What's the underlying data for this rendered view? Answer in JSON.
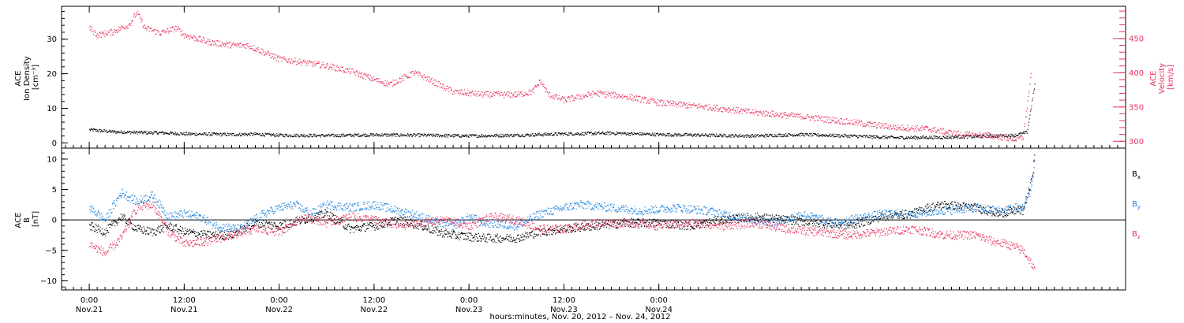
{
  "colors": {
    "pink": "#e8345f",
    "blue": "#1f83e0",
    "black": "#000000"
  },
  "chart_data": [
    {
      "type": "scatter",
      "panel": "plasma",
      "left_axis": {
        "label_lines": [
          "ACE",
          "Ion Density",
          "[cm⁻³]"
        ],
        "ylim": [
          -1.5,
          39.5
        ],
        "ticks": [
          0,
          10,
          20,
          30
        ],
        "tick_labels": [
          "0",
          "10",
          "20",
          "30"
        ]
      },
      "right_axis": {
        "label_lines": [
          "ACE",
          "Velocity",
          "[km/s]"
        ],
        "ylim": [
          290,
          497
        ],
        "ticks": [
          300,
          350,
          400,
          450
        ],
        "tick_labels": [
          "300",
          "350",
          "400",
          "450"
        ],
        "color": "#e8345f"
      },
      "series": [
        {
          "axis": "left",
          "color": "#000000",
          "points": [
            [
              0,
              3.8
            ],
            [
              3,
              3.2
            ],
            [
              6,
              3.0
            ],
            [
              9,
              2.9
            ],
            [
              12,
              2.6
            ],
            [
              18,
              2.4
            ],
            [
              21,
              2.5
            ],
            [
              24,
              2.2
            ],
            [
              30,
              2.1
            ],
            [
              36,
              2.3
            ],
            [
              42,
              2.2
            ],
            [
              48,
              2.0
            ],
            [
              54,
              2.2
            ],
            [
              60,
              2.6
            ],
            [
              66,
              2.8
            ],
            [
              72,
              2.4
            ],
            [
              78,
              2.2
            ],
            [
              84,
              2.0
            ],
            [
              90,
              2.4
            ],
            [
              96,
              2.0
            ],
            [
              102,
              1.5
            ],
            [
              108,
              1.6
            ],
            [
              114,
              2.0
            ],
            [
              117,
              2.2
            ],
            [
              118.5,
              3.0
            ],
            [
              119,
              10.0
            ],
            [
              119.5,
              17.0
            ]
          ]
        },
        {
          "axis": "right",
          "color": "#e8345f",
          "points": [
            [
              0,
              465
            ],
            [
              1,
              455
            ],
            [
              3,
              460
            ],
            [
              5,
              470
            ],
            [
              6,
              488
            ],
            [
              7,
              465
            ],
            [
              9,
              458
            ],
            [
              11,
              465
            ],
            [
              12,
              455
            ],
            [
              15,
              445
            ],
            [
              18,
              440
            ],
            [
              20,
              440
            ],
            [
              24,
              420
            ],
            [
              30,
              410
            ],
            [
              33,
              402
            ],
            [
              36,
              390
            ],
            [
              38,
              383
            ],
            [
              41,
              400
            ],
            [
              42,
              395
            ],
            [
              46,
              372
            ],
            [
              50,
              368
            ],
            [
              54,
              368
            ],
            [
              56,
              372
            ],
            [
              57,
              388
            ],
            [
              58,
              368
            ],
            [
              60,
              360
            ],
            [
              64,
              370
            ],
            [
              68,
              365
            ],
            [
              72,
              356
            ],
            [
              78,
              350
            ],
            [
              84,
              342
            ],
            [
              90,
              336
            ],
            [
              96,
              328
            ],
            [
              102,
              320
            ],
            [
              106,
              318
            ],
            [
              110,
              310
            ],
            [
              114,
              308
            ],
            [
              117,
              303
            ],
            [
              118,
              305
            ],
            [
              119,
              395
            ]
          ]
        }
      ]
    },
    {
      "type": "scatter",
      "panel": "magnetic-field",
      "left_axis": {
        "label_lines": [
          "ACE",
          "B",
          "[nT]"
        ],
        "ylim": [
          -11.5,
          11.8
        ],
        "ticks": [
          -10,
          -5,
          0,
          5,
          10
        ],
        "tick_labels": [
          "−10",
          "−5",
          "0",
          "5",
          "10"
        ]
      },
      "legend": [
        {
          "label": "B",
          "subscript": "x",
          "color": "#000000"
        },
        {
          "label": "B",
          "subscript": "y",
          "color": "#1f83e0"
        },
        {
          "label": "B",
          "subscript": "z",
          "color": "#e8345f"
        }
      ],
      "series": [
        {
          "name": "Bx",
          "color": "#000000",
          "points": [
            [
              0,
              -1.0
            ],
            [
              2,
              -2.0
            ],
            [
              4,
              0.5
            ],
            [
              6,
              -1.5
            ],
            [
              8,
              -2.0
            ],
            [
              10,
              -1.0
            ],
            [
              12,
              -2.0
            ],
            [
              15,
              -2.5
            ],
            [
              18,
              -2.5
            ],
            [
              21,
              -0.5
            ],
            [
              24,
              -1.0
            ],
            [
              27,
              0.0
            ],
            [
              30,
              1.0
            ],
            [
              33,
              -1.5
            ],
            [
              36,
              -1.0
            ],
            [
              39,
              0.0
            ],
            [
              42,
              -1.0
            ],
            [
              44,
              -2.0
            ],
            [
              46,
              -2.5
            ],
            [
              50,
              -3.0
            ],
            [
              54,
              -3.0
            ],
            [
              57,
              -2.0
            ],
            [
              60,
              -1.5
            ],
            [
              64,
              -1.0
            ],
            [
              68,
              -0.5
            ],
            [
              72,
              -0.5
            ],
            [
              76,
              -1.0
            ],
            [
              80,
              0.0
            ],
            [
              84,
              0.5
            ],
            [
              88,
              0.0
            ],
            [
              92,
              -0.5
            ],
            [
              96,
              -1.0
            ],
            [
              100,
              0.5
            ],
            [
              104,
              1.0
            ],
            [
              106,
              2.0
            ],
            [
              108,
              2.5
            ],
            [
              112,
              2.0
            ],
            [
              115,
              1.0
            ],
            [
              117,
              1.5
            ],
            [
              118,
              1.5
            ],
            [
              119,
              6.0
            ],
            [
              119.5,
              10.5
            ]
          ]
        },
        {
          "name": "By",
          "color": "#1f83e0",
          "points": [
            [
              0,
              2.0
            ],
            [
              2,
              0.0
            ],
            [
              4,
              4.5
            ],
            [
              6,
              3.0
            ],
            [
              8,
              4.0
            ],
            [
              10,
              0.5
            ],
            [
              12,
              1.0
            ],
            [
              14,
              0.5
            ],
            [
              16,
              -1.0
            ],
            [
              19,
              -1.5
            ],
            [
              22,
              1.0
            ],
            [
              24,
              2.0
            ],
            [
              26,
              2.5
            ],
            [
              28,
              1.0
            ],
            [
              30,
              2.5
            ],
            [
              33,
              2.0
            ],
            [
              36,
              2.5
            ],
            [
              39,
              1.5
            ],
            [
              42,
              0.5
            ],
            [
              44,
              -0.5
            ],
            [
              46,
              -1.0
            ],
            [
              48,
              0.5
            ],
            [
              50,
              -0.5
            ],
            [
              54,
              -1.0
            ],
            [
              57,
              1.0
            ],
            [
              60,
              2.0
            ],
            [
              62,
              2.5
            ],
            [
              66,
              2.0
            ],
            [
              70,
              1.5
            ],
            [
              74,
              2.0
            ],
            [
              78,
              1.5
            ],
            [
              82,
              0.5
            ],
            [
              84,
              0.0
            ],
            [
              87,
              -0.5
            ],
            [
              90,
              1.0
            ],
            [
              94,
              -0.5
            ],
            [
              98,
              0.5
            ],
            [
              101,
              1.0
            ],
            [
              104,
              1.0
            ],
            [
              108,
              1.5
            ],
            [
              112,
              2.0
            ],
            [
              115,
              1.5
            ],
            [
              117,
              2.0
            ],
            [
              118,
              2.0
            ],
            [
              119,
              5.0
            ],
            [
              119.5,
              9.5
            ]
          ]
        },
        {
          "name": "Bz",
          "color": "#e8345f",
          "points": [
            [
              0,
              -4.0
            ],
            [
              2,
              -5.5
            ],
            [
              4,
              -3.0
            ],
            [
              6,
              2.0
            ],
            [
              8,
              2.5
            ],
            [
              10,
              -2.0
            ],
            [
              12,
              -4.0
            ],
            [
              15,
              -3.5
            ],
            [
              18,
              -2.5
            ],
            [
              21,
              -1.5
            ],
            [
              24,
              -2.0
            ],
            [
              27,
              0.5
            ],
            [
              30,
              -0.5
            ],
            [
              33,
              0.5
            ],
            [
              36,
              0.0
            ],
            [
              39,
              -1.0
            ],
            [
              42,
              -0.5
            ],
            [
              45,
              0.0
            ],
            [
              48,
              -1.0
            ],
            [
              51,
              0.5
            ],
            [
              54,
              0.0
            ],
            [
              57,
              -1.5
            ],
            [
              60,
              -1.5
            ],
            [
              64,
              -0.5
            ],
            [
              68,
              -0.5
            ],
            [
              72,
              -1.0
            ],
            [
              76,
              -0.5
            ],
            [
              80,
              -1.0
            ],
            [
              84,
              -0.5
            ],
            [
              88,
              -1.5
            ],
            [
              92,
              -2.0
            ],
            [
              96,
              -2.5
            ],
            [
              100,
              -2.0
            ],
            [
              104,
              -1.5
            ],
            [
              108,
              -2.5
            ],
            [
              112,
              -2.5
            ],
            [
              114,
              -3.5
            ],
            [
              116,
              -4.0
            ],
            [
              117,
              -4.5
            ],
            [
              118,
              -5.0
            ],
            [
              119,
              -7.0
            ],
            [
              119.5,
              -8.5
            ]
          ]
        }
      ]
    }
  ],
  "x_axis": {
    "xlim": [
      -3.5,
      131
    ],
    "ticks": [
      {
        "t": 0,
        "time": "0:00",
        "day": "Nov.21"
      },
      {
        "t": 12,
        "time": "12:00",
        "day": "Nov.21"
      },
      {
        "t": 24,
        "time": "0:00",
        "day": "Nov.22"
      },
      {
        "t": 36,
        "time": "12:00",
        "day": "Nov.22"
      },
      {
        "t": 48,
        "time": "0:00",
        "day": "Nov.23"
      },
      {
        "t": 60,
        "time": "12:00",
        "day": "Nov.23"
      },
      {
        "t": 72,
        "time": "0:00",
        "day": "Nov.24"
      }
    ],
    "title": "hours:minutes, Nov. 20, 2012 – Nov. 24, 2012"
  }
}
